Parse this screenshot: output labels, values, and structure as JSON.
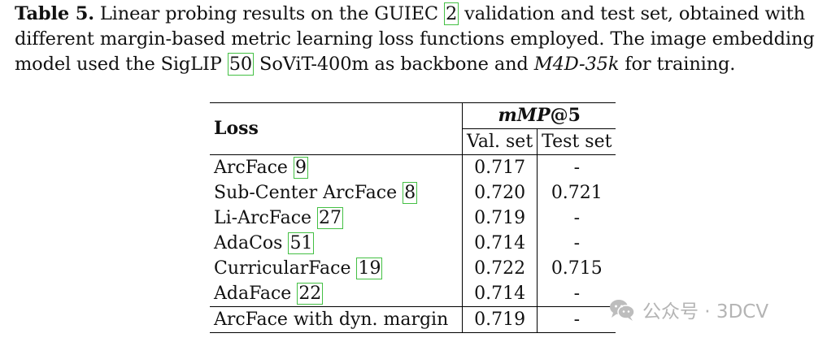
{
  "caption": {
    "label": "Table 5.",
    "part1": " Linear probing results on the GUIEC ",
    "cite1": "2",
    "part2": " validation and test set, obtained with different margin-based metric learning loss functions employed. The image embedding model used the SigLIP ",
    "cite2": "50",
    "part3": " SoViT-400m as backbone and ",
    "dataset": "M4D-35k",
    "part4": " for training."
  },
  "table": {
    "col_loss": "Loss",
    "col_metric_main": "mMP",
    "col_metric_at": "@5",
    "col_val": "Val. set",
    "col_test": "Test set",
    "rows": [
      {
        "name": "ArcFace ",
        "cite": "9",
        "val": "0.717",
        "test": "-"
      },
      {
        "name": "Sub-Center ArcFace ",
        "cite": "8",
        "val": "0.720",
        "test": "0.721"
      },
      {
        "name": "Li-ArcFace ",
        "cite": "27",
        "val": "0.719",
        "test": "-"
      },
      {
        "name": "AdaCos ",
        "cite": "51",
        "val": "0.714",
        "test": "-"
      },
      {
        "name": "CurricularFace ",
        "cite": "19",
        "val": "0.722",
        "test": "0.715"
      },
      {
        "name": "AdaFace ",
        "cite": "22",
        "val": "0.714",
        "test": "-"
      }
    ],
    "final_row": {
      "name": "ArcFace with dyn. margin",
      "val": "0.719",
      "test": "-"
    }
  },
  "watermark": {
    "text": "公众号 · 3DCV",
    "icon": "wechat-icon"
  }
}
